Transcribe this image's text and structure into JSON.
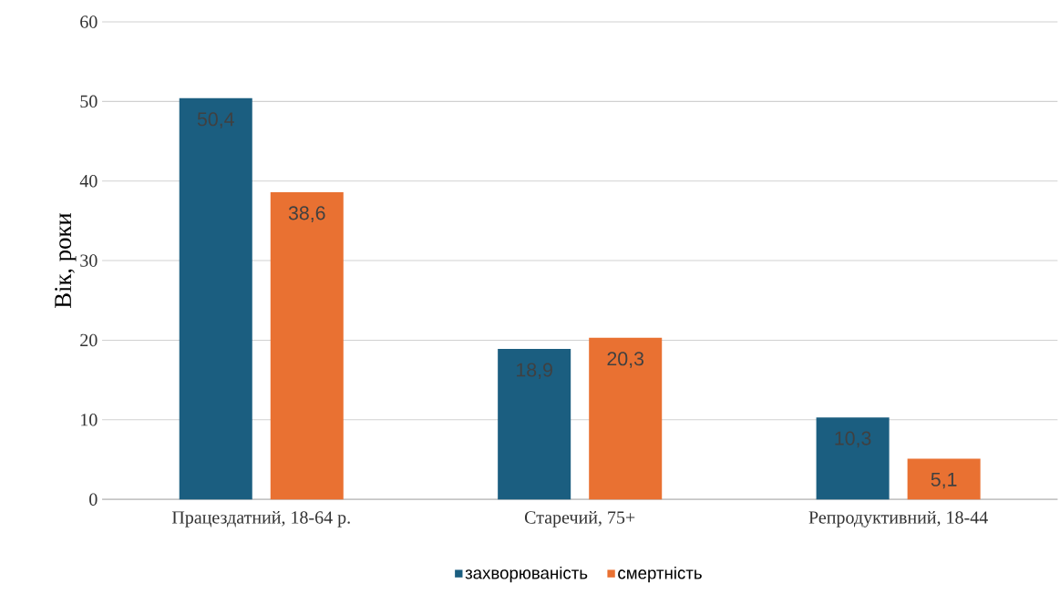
{
  "chart_data": {
    "type": "bar",
    "ylabel": "Вік, роки",
    "categories": [
      "Працездатний, 18-64 р.",
      "Старечий, 75+",
      "Репродуктивний, 18-44"
    ],
    "series": [
      {
        "name": "захворюваність",
        "color": "#1b5e80",
        "values": [
          50.4,
          18.9,
          10.3
        ],
        "value_labels": [
          "50,4",
          "18,9",
          "10,3"
        ]
      },
      {
        "name": "смертність",
        "color": "#e97132",
        "values": [
          38.6,
          20.3,
          5.1
        ],
        "value_labels": [
          "38,6",
          "20,3",
          "5,1"
        ]
      }
    ],
    "ylim": [
      0,
      60
    ],
    "yticks": [
      0,
      10,
      20,
      30,
      40,
      50,
      60
    ],
    "grid": "y",
    "legend": "bottom"
  }
}
